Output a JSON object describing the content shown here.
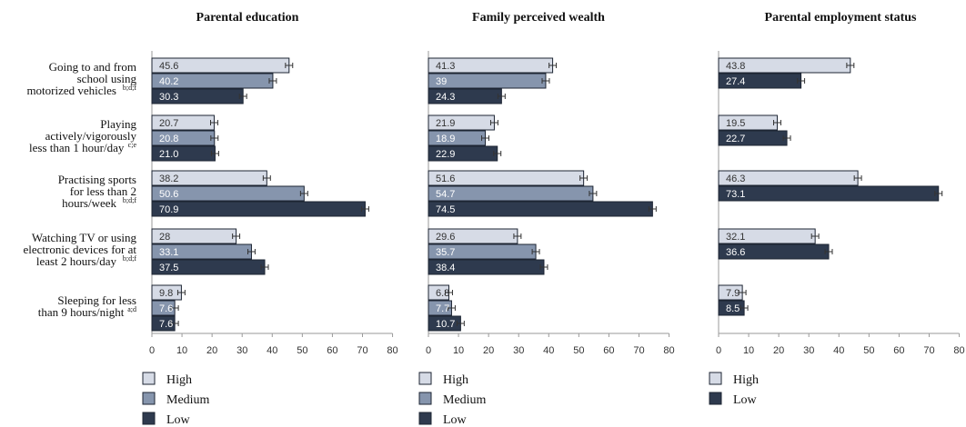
{
  "chart_data": [
    {
      "type": "bar",
      "orientation": "horizontal",
      "title": "Parental education",
      "xlim": [
        0,
        80
      ],
      "xticks": [
        "0",
        "10",
        "20",
        "30",
        "40",
        "50",
        "60",
        "70",
        "80"
      ],
      "grid": false,
      "legend": "bottom-left",
      "series": [
        {
          "name": "High",
          "color": "#d6dbe6",
          "values": [
            45.6,
            20.7,
            38.2,
            28,
            9.8
          ],
          "labels": [
            "45.6",
            "20.7",
            "38.2",
            "28",
            "9.8"
          ]
        },
        {
          "name": "Medium",
          "color": "#8695ad",
          "values": [
            40.2,
            20.8,
            50.6,
            33.1,
            7.6
          ],
          "labels": [
            "40.2",
            "20.8",
            "50.6",
            "33.1",
            "7.6"
          ]
        },
        {
          "name": "Low",
          "color": "#2e3a4e",
          "values": [
            30.3,
            21.0,
            70.9,
            37.5,
            7.6
          ],
          "labels": [
            "30.3",
            "21.0",
            "70.9",
            "37.5",
            "7.6"
          ]
        }
      ]
    },
    {
      "type": "bar",
      "orientation": "horizontal",
      "title": "Family perceived wealth",
      "xlim": [
        0,
        80
      ],
      "xticks": [
        "0",
        "10",
        "20",
        "30",
        "40",
        "50",
        "60",
        "70",
        "80"
      ],
      "grid": false,
      "legend": "bottom-left",
      "series": [
        {
          "name": "High",
          "color": "#d6dbe6",
          "values": [
            41.3,
            21.9,
            51.6,
            29.6,
            6.8
          ],
          "labels": [
            "41.3",
            "21.9",
            "51.6",
            "29.6",
            "6.8"
          ]
        },
        {
          "name": "Medium",
          "color": "#8695ad",
          "values": [
            39,
            18.9,
            54.7,
            35.7,
            7.7
          ],
          "labels": [
            "39",
            "18.9",
            "54.7",
            "35.7",
            "7.7"
          ]
        },
        {
          "name": "Low",
          "color": "#2e3a4e",
          "values": [
            24.3,
            22.9,
            74.5,
            38.4,
            10.7
          ],
          "labels": [
            "24.3",
            "22.9",
            "74.5",
            "38.4",
            "10.7"
          ]
        }
      ]
    },
    {
      "type": "bar",
      "orientation": "horizontal",
      "title": "Parental employment status",
      "xlim": [
        0,
        80
      ],
      "xticks": [
        "0",
        "10",
        "20",
        "30",
        "40",
        "50",
        "60",
        "70",
        "80"
      ],
      "grid": false,
      "legend": "bottom-left",
      "series": [
        {
          "name": "High",
          "color": "#d6dbe6",
          "values": [
            43.8,
            19.5,
            46.3,
            32.1,
            7.9
          ],
          "labels": [
            "43.8",
            "19.5",
            "46.3",
            "32.1",
            "7.9"
          ]
        },
        {
          "name": "Low",
          "color": "#2e3a4e",
          "values": [
            27.4,
            22.7,
            73.1,
            36.6,
            8.5
          ],
          "labels": [
            "27.4",
            "22.7",
            "73.1",
            "36.6",
            "8.5"
          ]
        }
      ]
    }
  ],
  "categories": [
    {
      "lines": [
        "Going to and from",
        "school using",
        "motorized vehicles"
      ],
      "sup": "b;d;f"
    },
    {
      "lines": [
        "Playing",
        "actively/vigorously",
        "less than 1 hour/day"
      ],
      "sup": "c;e"
    },
    {
      "lines": [
        "Practising sports",
        "for less than 2",
        "hours/week"
      ],
      "sup": "b;d;f"
    },
    {
      "lines": [
        "Watching TV or using",
        "electronic devices for at",
        "least 2 hours/day"
      ],
      "sup": "b;d;f"
    },
    {
      "lines": [
        "Sleeping for less",
        "than 9 hours/night"
      ],
      "sup": "a;d"
    }
  ]
}
